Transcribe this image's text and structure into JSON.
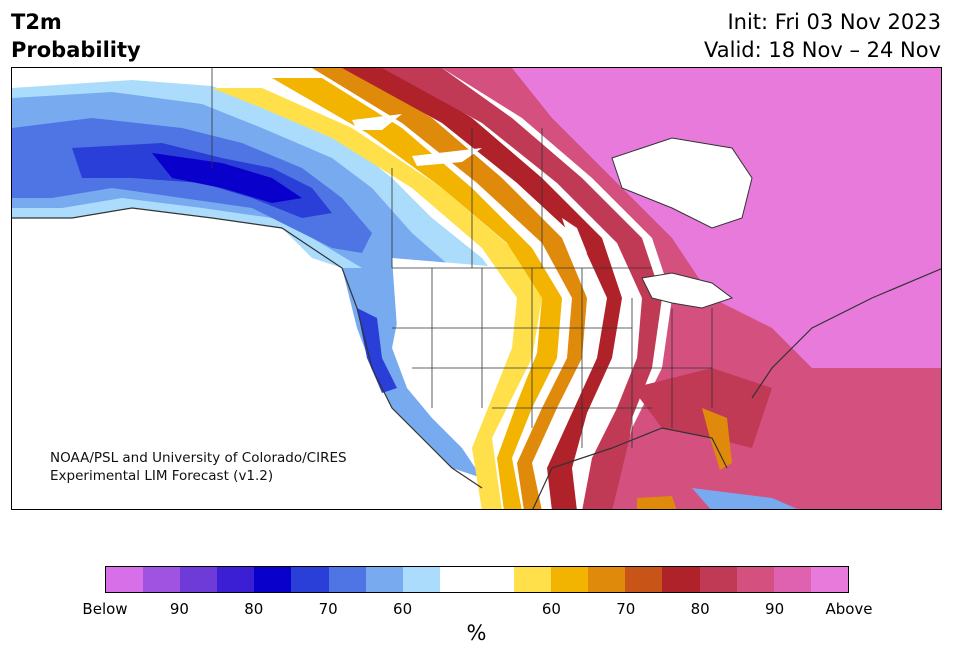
{
  "title": {
    "line1": "T2m",
    "line2": "Probability"
  },
  "init_text": "Init: Fri 03 Nov 2023",
  "valid_text": "Valid: 18 Nov – 24 Nov",
  "credit": {
    "line1": "NOAA/PSL and University of Colorado/CIRES",
    "line2": "Experimental LIM Forecast (v1.2)"
  },
  "colorbar": {
    "unit_label": "%",
    "colors": [
      "#d66fe8",
      "#a052e0",
      "#6e3ad8",
      "#3a1fd4",
      "#0a00cc",
      "#2a3ed8",
      "#4f74e4",
      "#78aaf0",
      "#acdcfc",
      "#ffffff",
      "#ffffff",
      "#ffe04a",
      "#f2b400",
      "#e08a0c",
      "#c85418",
      "#b0222a",
      "#c03a56",
      "#d4507e",
      "#de62b0",
      "#e87adc"
    ],
    "ticks": [
      {
        "label": "Below",
        "frac": 0.0
      },
      {
        "label": "90",
        "frac": 0.1
      },
      {
        "label": "80",
        "frac": 0.2
      },
      {
        "label": "70",
        "frac": 0.3
      },
      {
        "label": "60",
        "frac": 0.4
      },
      {
        "label": "60",
        "frac": 0.6
      },
      {
        "label": "70",
        "frac": 0.7
      },
      {
        "label": "80",
        "frac": 0.8
      },
      {
        "label": "90",
        "frac": 0.9
      },
      {
        "label": "Above",
        "frac": 1.0
      }
    ]
  }
}
